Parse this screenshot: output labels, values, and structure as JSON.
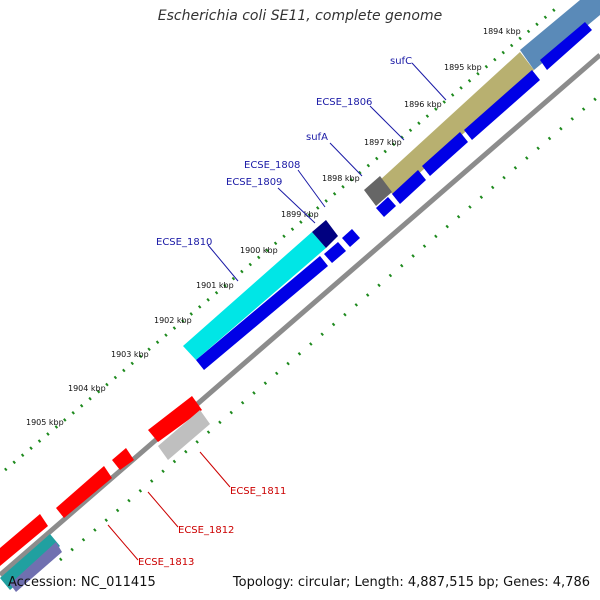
{
  "title": "Escherichia coli SE11, complete genome",
  "footer": {
    "accession": "Accession: NC_011415",
    "topology": "Topology: circular; Length: 4,887,515 bp; Genes: 4,786"
  },
  "ticks": [
    "1894 kbp",
    "1895 kbp",
    "1896 kbp",
    "1897 kbp",
    "1898 kbp",
    "1899 kbp",
    "1900 kbp",
    "1901 kbp",
    "1902 kbp",
    "1903 kbp",
    "1904 kbp",
    "1905 kbp"
  ],
  "gene_labels_blue": [
    "sufC",
    "ECSE_1806",
    "sufA",
    "ECSE_1808",
    "ECSE_1809",
    "ECSE_1810"
  ],
  "gene_labels_red": [
    "ECSE_1811",
    "ECSE_1812",
    "ECSE_1813"
  ],
  "colors": {
    "forward_gene": "#0000e6",
    "reverse_gene": "#ff0000",
    "label_blue": "#1a1aa6",
    "label_red": "#cc0000",
    "dots": "#1e8a1e",
    "backbone": "#8c8c8c"
  }
}
